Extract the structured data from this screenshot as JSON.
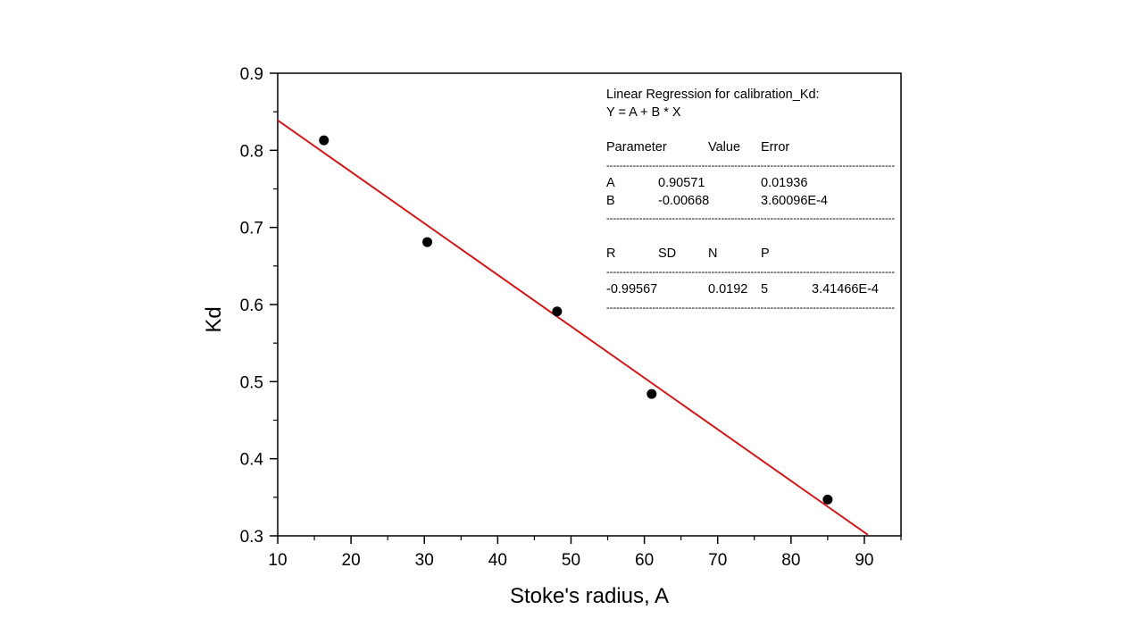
{
  "chart_data": {
    "type": "scatter",
    "xlabel": "Stoke's radius, A",
    "ylabel": "Kd",
    "xlim": [
      10,
      95
    ],
    "ylim": [
      0.3,
      0.9
    ],
    "x_ticks": [
      10,
      20,
      30,
      40,
      50,
      60,
      70,
      80,
      90
    ],
    "y_ticks": [
      0.3,
      0.4,
      0.5,
      0.6,
      0.7,
      0.8,
      0.9
    ],
    "x_tick_labels": [
      "10",
      "20",
      "30",
      "40",
      "50",
      "60",
      "70",
      "80",
      "90"
    ],
    "y_tick_labels": [
      "0.3",
      "0.4",
      "0.5",
      "0.6",
      "0.7",
      "0.8",
      "0.9"
    ],
    "grid": false,
    "points": [
      {
        "x": 16.3,
        "y": 0.813
      },
      {
        "x": 30.4,
        "y": 0.681
      },
      {
        "x": 48.1,
        "y": 0.591
      },
      {
        "x": 61.0,
        "y": 0.484
      },
      {
        "x": 85.0,
        "y": 0.347
      }
    ],
    "fit_line": {
      "intercept": 0.90571,
      "slope": -0.00668,
      "color": "#d11a1a",
      "x_range": [
        10,
        90.5
      ]
    },
    "marker_color": "#000000",
    "annotation": {
      "title": "Linear Regression for calibration_Kd:",
      "equation": "Y = A + B * X",
      "param_header": [
        "Parameter",
        "Value",
        "Error"
      ],
      "params": [
        [
          "A",
          "0.90571",
          "0.01936"
        ],
        [
          "B",
          "-0.00668",
          "3.60096E-4"
        ]
      ],
      "stats_header": [
        "R",
        "SD",
        "N",
        "P"
      ],
      "stats": [
        "-0.99567",
        "0.0192",
        "5",
        "3.41466E-4"
      ],
      "separator": "----------------------------------------------------------------------------------------"
    }
  }
}
